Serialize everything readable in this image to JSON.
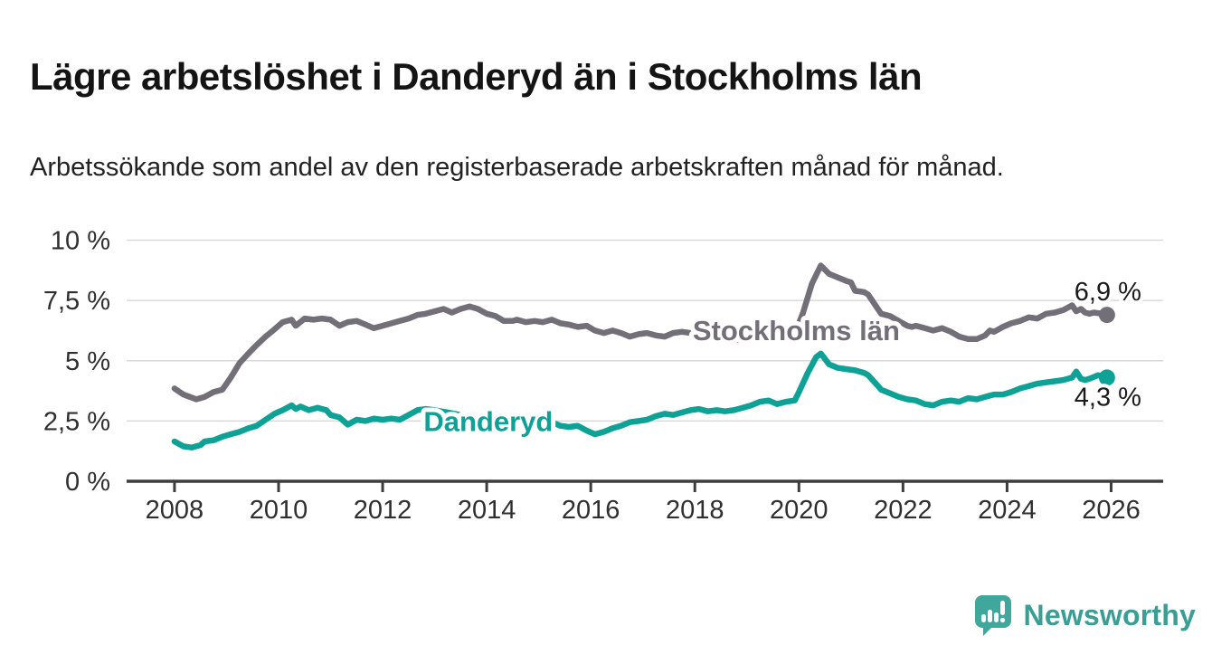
{
  "header": {
    "title": "Lägre arbetslöshet i Danderyd än i Stockholms län",
    "subtitle": "Arbetssökande som andel av den registerbaserade arbetskraften månad för månad."
  },
  "branding": {
    "name": "Newsworthy",
    "icon": "newsworthy-bubble-chart-icon",
    "color": "#3fa79b"
  },
  "chart_data": {
    "type": "line",
    "title": "Lägre arbetslöshet i Danderyd än i Stockholms län",
    "unit": "%",
    "grid": "horizontal-only",
    "legend_position": "inline-labels-on-lines",
    "x_axis": {
      "range": [
        2007.08,
        2027.0
      ],
      "ticks": [
        {
          "value": 2008,
          "label": "2008"
        },
        {
          "value": 2010,
          "label": "2010"
        },
        {
          "value": 2012,
          "label": "2012"
        },
        {
          "value": 2014,
          "label": "2014"
        },
        {
          "value": 2016,
          "label": "2016"
        },
        {
          "value": 2018,
          "label": "2018"
        },
        {
          "value": 2020,
          "label": "2020"
        },
        {
          "value": 2022,
          "label": "2022"
        },
        {
          "value": 2024,
          "label": "2024"
        },
        {
          "value": 2026,
          "label": "2026"
        }
      ]
    },
    "y_axis": {
      "range": [
        0,
        10
      ],
      "ticks": [
        {
          "value": 0,
          "label": "0 %"
        },
        {
          "value": 2.5,
          "label": "2,5 %"
        },
        {
          "value": 5,
          "label": "5 %"
        },
        {
          "value": 7.5,
          "label": "7,5 %"
        },
        {
          "value": 10,
          "label": "10 %"
        }
      ]
    },
    "series": [
      {
        "name": "Stockholms län",
        "color": "#736f79",
        "end_label": "6,9 %",
        "end_value": 6.9,
        "end_label_position": "above",
        "inline_label": {
          "x": 2019.95,
          "y": 6.27
        },
        "points": [
          [
            2008.0,
            3.85
          ],
          [
            2008.17,
            3.6
          ],
          [
            2008.42,
            3.4
          ],
          [
            2008.58,
            3.5
          ],
          [
            2008.75,
            3.7
          ],
          [
            2008.92,
            3.8
          ],
          [
            2009.08,
            4.3
          ],
          [
            2009.25,
            4.9
          ],
          [
            2009.42,
            5.3
          ],
          [
            2009.58,
            5.65
          ],
          [
            2009.75,
            6.0
          ],
          [
            2009.92,
            6.3
          ],
          [
            2010.08,
            6.6
          ],
          [
            2010.25,
            6.7
          ],
          [
            2010.33,
            6.45
          ],
          [
            2010.5,
            6.75
          ],
          [
            2010.67,
            6.7
          ],
          [
            2010.83,
            6.75
          ],
          [
            2011.0,
            6.7
          ],
          [
            2011.17,
            6.45
          ],
          [
            2011.33,
            6.6
          ],
          [
            2011.5,
            6.65
          ],
          [
            2011.67,
            6.5
          ],
          [
            2011.83,
            6.35
          ],
          [
            2012.0,
            6.45
          ],
          [
            2012.17,
            6.55
          ],
          [
            2012.33,
            6.65
          ],
          [
            2012.5,
            6.75
          ],
          [
            2012.67,
            6.9
          ],
          [
            2012.83,
            6.95
          ],
          [
            2013.0,
            7.05
          ],
          [
            2013.17,
            7.15
          ],
          [
            2013.33,
            7.0
          ],
          [
            2013.5,
            7.15
          ],
          [
            2013.67,
            7.25
          ],
          [
            2013.83,
            7.15
          ],
          [
            2014.0,
            6.95
          ],
          [
            2014.17,
            6.85
          ],
          [
            2014.33,
            6.65
          ],
          [
            2014.5,
            6.65
          ],
          [
            2014.58,
            6.7
          ],
          [
            2014.75,
            6.6
          ],
          [
            2014.92,
            6.65
          ],
          [
            2015.08,
            6.6
          ],
          [
            2015.25,
            6.7
          ],
          [
            2015.42,
            6.55
          ],
          [
            2015.58,
            6.5
          ],
          [
            2015.75,
            6.4
          ],
          [
            2015.92,
            6.45
          ],
          [
            2016.08,
            6.25
          ],
          [
            2016.25,
            6.15
          ],
          [
            2016.42,
            6.25
          ],
          [
            2016.58,
            6.15
          ],
          [
            2016.75,
            6.0
          ],
          [
            2016.92,
            6.1
          ],
          [
            2017.08,
            6.15
          ],
          [
            2017.25,
            6.05
          ],
          [
            2017.42,
            6.0
          ],
          [
            2017.58,
            6.15
          ],
          [
            2017.75,
            6.2
          ],
          [
            2017.92,
            6.15
          ],
          [
            2018.08,
            6.05
          ],
          [
            2018.25,
            5.95
          ],
          [
            2018.42,
            6.0
          ],
          [
            2018.58,
            5.95
          ],
          [
            2018.75,
            5.9
          ],
          [
            2018.92,
            5.85
          ],
          [
            2019.08,
            5.9
          ],
          [
            2019.25,
            5.95
          ],
          [
            2019.42,
            6.0
          ],
          [
            2019.58,
            5.95
          ],
          [
            2019.75,
            6.0
          ],
          [
            2019.92,
            6.1
          ],
          [
            2020.08,
            7.0
          ],
          [
            2020.25,
            8.2
          ],
          [
            2020.42,
            8.95
          ],
          [
            2020.58,
            8.6
          ],
          [
            2020.75,
            8.45
          ],
          [
            2020.92,
            8.3
          ],
          [
            2021.0,
            8.25
          ],
          [
            2021.08,
            7.9
          ],
          [
            2021.25,
            7.85
          ],
          [
            2021.33,
            7.75
          ],
          [
            2021.5,
            7.2
          ],
          [
            2021.58,
            6.95
          ],
          [
            2021.75,
            6.85
          ],
          [
            2021.92,
            6.65
          ],
          [
            2022.08,
            6.45
          ],
          [
            2022.17,
            6.4
          ],
          [
            2022.25,
            6.45
          ],
          [
            2022.42,
            6.35
          ],
          [
            2022.58,
            6.25
          ],
          [
            2022.75,
            6.35
          ],
          [
            2022.92,
            6.2
          ],
          [
            2023.08,
            6.0
          ],
          [
            2023.25,
            5.9
          ],
          [
            2023.42,
            5.9
          ],
          [
            2023.58,
            6.05
          ],
          [
            2023.67,
            6.25
          ],
          [
            2023.75,
            6.2
          ],
          [
            2023.92,
            6.4
          ],
          [
            2024.08,
            6.55
          ],
          [
            2024.25,
            6.65
          ],
          [
            2024.42,
            6.8
          ],
          [
            2024.58,
            6.75
          ],
          [
            2024.75,
            6.95
          ],
          [
            2024.92,
            7.0
          ],
          [
            2025.08,
            7.1
          ],
          [
            2025.25,
            7.3
          ],
          [
            2025.33,
            7.05
          ],
          [
            2025.42,
            7.15
          ],
          [
            2025.5,
            7.0
          ],
          [
            2025.58,
            6.95
          ],
          [
            2025.67,
            7.0
          ],
          [
            2025.83,
            6.95
          ],
          [
            2025.92,
            6.9
          ]
        ]
      },
      {
        "name": "Danderyd",
        "color": "#0ea297",
        "end_label": "4,3 %",
        "end_value": 4.3,
        "end_label_position": "below",
        "inline_label": {
          "x": 2014.03,
          "y": 2.5
        },
        "points": [
          [
            2008.0,
            1.65
          ],
          [
            2008.17,
            1.45
          ],
          [
            2008.33,
            1.4
          ],
          [
            2008.5,
            1.5
          ],
          [
            2008.58,
            1.65
          ],
          [
            2008.75,
            1.7
          ],
          [
            2008.92,
            1.85
          ],
          [
            2009.08,
            1.95
          ],
          [
            2009.25,
            2.05
          ],
          [
            2009.42,
            2.2
          ],
          [
            2009.58,
            2.3
          ],
          [
            2009.75,
            2.55
          ],
          [
            2009.92,
            2.8
          ],
          [
            2010.08,
            2.95
          ],
          [
            2010.25,
            3.15
          ],
          [
            2010.33,
            3.0
          ],
          [
            2010.42,
            3.1
          ],
          [
            2010.58,
            2.95
          ],
          [
            2010.75,
            3.05
          ],
          [
            2010.92,
            2.95
          ],
          [
            2011.0,
            2.75
          ],
          [
            2011.17,
            2.65
          ],
          [
            2011.33,
            2.35
          ],
          [
            2011.5,
            2.55
          ],
          [
            2011.67,
            2.5
          ],
          [
            2011.83,
            2.6
          ],
          [
            2012.0,
            2.55
          ],
          [
            2012.17,
            2.6
          ],
          [
            2012.33,
            2.55
          ],
          [
            2012.5,
            2.75
          ],
          [
            2012.67,
            2.95
          ],
          [
            2012.83,
            3.0
          ],
          [
            2013.0,
            2.95
          ],
          [
            2013.25,
            2.85
          ],
          [
            2013.5,
            2.75
          ],
          [
            2013.75,
            2.6
          ],
          [
            2014.0,
            2.5
          ],
          [
            2014.25,
            2.45
          ],
          [
            2014.5,
            2.4
          ],
          [
            2014.75,
            2.35
          ],
          [
            2015.0,
            2.3
          ],
          [
            2015.25,
            2.45
          ],
          [
            2015.42,
            2.3
          ],
          [
            2015.58,
            2.25
          ],
          [
            2015.75,
            2.3
          ],
          [
            2015.92,
            2.1
          ],
          [
            2016.08,
            1.95
          ],
          [
            2016.25,
            2.05
          ],
          [
            2016.42,
            2.2
          ],
          [
            2016.58,
            2.3
          ],
          [
            2016.75,
            2.45
          ],
          [
            2016.92,
            2.5
          ],
          [
            2017.08,
            2.55
          ],
          [
            2017.25,
            2.7
          ],
          [
            2017.42,
            2.8
          ],
          [
            2017.58,
            2.75
          ],
          [
            2017.75,
            2.85
          ],
          [
            2017.92,
            2.95
          ],
          [
            2018.08,
            3.0
          ],
          [
            2018.25,
            2.9
          ],
          [
            2018.42,
            2.95
          ],
          [
            2018.58,
            2.9
          ],
          [
            2018.75,
            2.95
          ],
          [
            2018.92,
            3.05
          ],
          [
            2019.08,
            3.15
          ],
          [
            2019.25,
            3.3
          ],
          [
            2019.42,
            3.35
          ],
          [
            2019.58,
            3.2
          ],
          [
            2019.75,
            3.3
          ],
          [
            2019.92,
            3.35
          ],
          [
            2020.0,
            3.7
          ],
          [
            2020.17,
            4.5
          ],
          [
            2020.33,
            5.15
          ],
          [
            2020.42,
            5.3
          ],
          [
            2020.58,
            4.85
          ],
          [
            2020.75,
            4.7
          ],
          [
            2020.92,
            4.65
          ],
          [
            2021.08,
            4.6
          ],
          [
            2021.25,
            4.5
          ],
          [
            2021.33,
            4.4
          ],
          [
            2021.5,
            4.0
          ],
          [
            2021.58,
            3.8
          ],
          [
            2021.75,
            3.65
          ],
          [
            2021.92,
            3.5
          ],
          [
            2022.08,
            3.4
          ],
          [
            2022.25,
            3.35
          ],
          [
            2022.42,
            3.2
          ],
          [
            2022.58,
            3.15
          ],
          [
            2022.75,
            3.3
          ],
          [
            2022.92,
            3.35
          ],
          [
            2023.08,
            3.3
          ],
          [
            2023.25,
            3.45
          ],
          [
            2023.42,
            3.4
          ],
          [
            2023.58,
            3.5
          ],
          [
            2023.75,
            3.6
          ],
          [
            2023.92,
            3.6
          ],
          [
            2024.08,
            3.7
          ],
          [
            2024.25,
            3.85
          ],
          [
            2024.42,
            3.95
          ],
          [
            2024.58,
            4.05
          ],
          [
            2024.75,
            4.1
          ],
          [
            2024.92,
            4.15
          ],
          [
            2025.08,
            4.2
          ],
          [
            2025.25,
            4.3
          ],
          [
            2025.33,
            4.55
          ],
          [
            2025.42,
            4.25
          ],
          [
            2025.5,
            4.2
          ],
          [
            2025.58,
            4.25
          ],
          [
            2025.75,
            4.4
          ],
          [
            2025.92,
            4.3
          ]
        ]
      }
    ],
    "style": {
      "gridline_color": "#d9d9d9",
      "axis_color": "#3d3d3d",
      "tick_label_color": "#2f2f2f",
      "value_label_color": "#1a1a1a"
    }
  }
}
